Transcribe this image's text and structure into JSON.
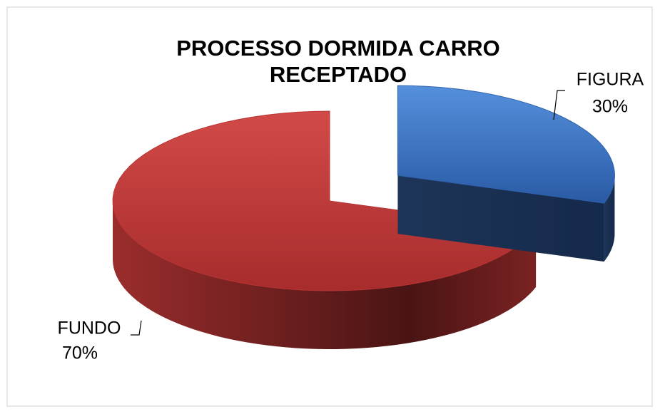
{
  "chart_data": {
    "type": "pie",
    "title": "PROCESSO DORMIDA CARRO RECEPTADO",
    "categories": [
      "FIGURA",
      "FUNDO"
    ],
    "values": [
      30,
      70
    ],
    "value_labels": [
      "30%",
      "70%"
    ],
    "colors": [
      "#3b72c2",
      "#c63c3b"
    ]
  }
}
